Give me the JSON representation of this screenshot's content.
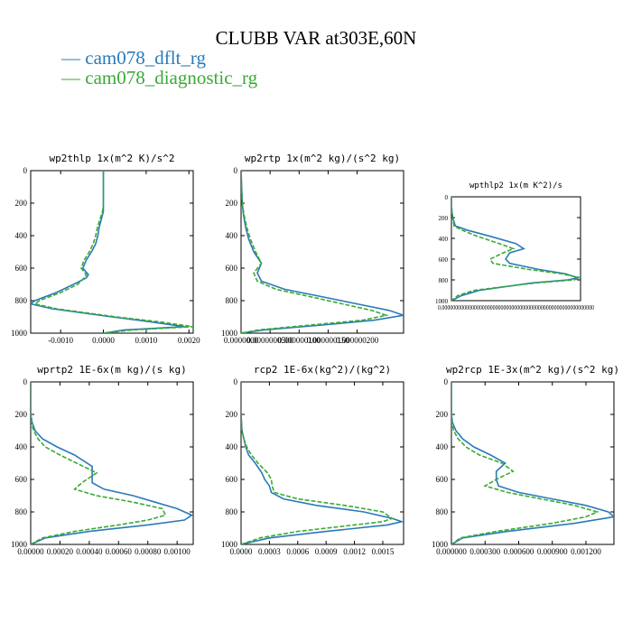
{
  "page": {
    "title": "CLUBB VAR at303E,60N",
    "legend": [
      {
        "label": "cam078_dflt_rg",
        "color": "#2a7ab8",
        "dash": false
      },
      {
        "label": "cam078_diagnostic_rg",
        "color": "#3aaa35",
        "dash": true
      }
    ]
  },
  "chart_data": [
    {
      "type": "line",
      "title": "wp2thlp  1x(m^2 K)/s^2",
      "xlim": [
        -0.0017,
        0.0021
      ],
      "xticks": [
        -0.001,
        0,
        0.001,
        0.002
      ],
      "xtick_labels": [
        "-0.0010",
        "0.0000",
        "0.0010",
        "0.0020"
      ],
      "ylim": [
        1000,
        0
      ],
      "yticks": [
        0,
        200,
        400,
        600,
        800,
        1000
      ],
      "ytick_labels": [
        "0",
        "200",
        "400",
        "600",
        "800",
        "1000"
      ],
      "series": [
        {
          "name": "cam078_dflt_rg",
          "y": [
            0,
            100,
            200,
            250,
            300,
            350,
            400,
            450,
            500,
            550,
            600,
            640,
            660,
            700,
            750,
            800,
            820,
            850,
            900,
            930,
            960,
            980,
            1000
          ],
          "x": [
            0,
            0,
            0,
            0,
            -5e-05,
            -0.0001,
            -0.00013,
            -0.00018,
            -0.00028,
            -0.0004,
            -0.00048,
            -0.00035,
            -0.0004,
            -0.0007,
            -0.0011,
            -0.0016,
            -0.0017,
            -0.0012,
            0.0002,
            0.0011,
            0.0019,
            0.0005,
            0
          ]
        },
        {
          "name": "cam078_diagnostic_rg",
          "y": [
            0,
            100,
            200,
            250,
            300,
            350,
            400,
            450,
            500,
            550,
            600,
            640,
            660,
            700,
            750,
            800,
            820,
            850,
            900,
            930,
            960,
            980,
            1000
          ],
          "x": [
            0,
            0,
            0,
            -2e-05,
            -8e-05,
            -0.00014,
            -0.00018,
            -0.00024,
            -0.00033,
            -0.00045,
            -0.00052,
            -0.0004,
            -0.00045,
            -0.0006,
            -0.001,
            -0.0015,
            -0.0016,
            -0.0011,
            0.0003,
            0.0013,
            0.0021,
            0.0007,
            0
          ]
        }
      ]
    },
    {
      "type": "line",
      "title": "wp2rtp  1x(m^2 kg)/(s^2 kg)",
      "xlim": [
        0,
        2.8e-07
      ],
      "xticks": [
        0,
        5e-08,
        1e-07,
        1.5e-07,
        2e-07
      ],
      "xtick_labels": [
        "0.0000000",
        "0.0000000500",
        "0.000000100",
        "0.000000150",
        "0.000000200"
      ],
      "ylim": [
        1000,
        0
      ],
      "yticks": [
        0,
        200,
        400,
        600,
        800,
        1000
      ],
      "ytick_labels": [
        "0",
        "200",
        "400",
        "600",
        "800",
        "1000"
      ],
      "series": [
        {
          "name": "cam078_dflt_rg",
          "y": [
            0,
            200,
            270,
            350,
            420,
            500,
            570,
            630,
            680,
            730,
            780,
            820,
            860,
            890,
            920,
            950,
            980,
            1000
          ],
          "x": [
            0,
            2e-09,
            4e-09,
            8e-09,
            1.3e-08,
            2.2e-08,
            3.5e-08,
            2.8e-08,
            3.5e-08,
            7.5e-08,
            1.45e-07,
            2e-07,
            2.55e-07,
            2.8e-07,
            2.3e-07,
            1.4e-07,
            4e-08,
            0
          ]
        },
        {
          "name": "cam078_diagnostic_rg",
          "y": [
            0,
            200,
            270,
            350,
            420,
            500,
            570,
            630,
            680,
            730,
            780,
            820,
            860,
            890,
            920,
            950,
            980,
            1000
          ],
          "x": [
            0,
            2e-09,
            5e-09,
            1e-08,
            1.6e-08,
            2.5e-08,
            3.5e-08,
            2.2e-08,
            2.8e-08,
            6e-08,
            1.25e-07,
            1.75e-07,
            2.25e-07,
            2.5e-07,
            2.1e-07,
            1.2e-07,
            3e-08,
            0
          ]
        }
      ]
    },
    {
      "type": "line",
      "title": "wpthlp2  1x(m K^2)/s",
      "xlim": [
        0,
        1
      ],
      "xticks": [],
      "xtick_labels": [],
      "xaxis_label_text": "0.000000000000000000000000000000000000000000000000000000000",
      "ylim": [
        1000,
        0
      ],
      "yticks": [
        0,
        200,
        400,
        600,
        800,
        1000
      ],
      "ytick_labels": [
        "0",
        "200",
        "400",
        "600",
        "800",
        "1000"
      ],
      "series": [
        {
          "name": "cam078_dflt_rg",
          "y": [
            0,
            100,
            200,
            280,
            320,
            380,
            450,
            500,
            540,
            600,
            640,
            700,
            740,
            780,
            800,
            830,
            900,
            950,
            1000
          ],
          "x": [
            0,
            0,
            0.01,
            0.03,
            0.12,
            0.3,
            0.5,
            0.56,
            0.45,
            0.42,
            0.45,
            0.68,
            0.88,
            0.98,
            0.9,
            0.62,
            0.22,
            0.08,
            0
          ]
        },
        {
          "name": "cam078_diagnostic_rg",
          "y": [
            0,
            100,
            200,
            280,
            320,
            380,
            450,
            500,
            540,
            600,
            640,
            700,
            740,
            780,
            800,
            830,
            900,
            950,
            1000
          ],
          "x": [
            0,
            0,
            0.01,
            0.02,
            0.08,
            0.2,
            0.37,
            0.48,
            0.4,
            0.3,
            0.32,
            0.6,
            0.85,
            1.0,
            0.95,
            0.65,
            0.18,
            0.05,
            0
          ]
        }
      ]
    },
    {
      "type": "line",
      "title": "wprtp2  1E-6x(m kg)/(s kg)",
      "xlim": [
        0,
        0.00111
      ],
      "xticks": [
        0,
        0.0002,
        0.0004,
        0.0006,
        0.0008,
        0.001
      ],
      "xtick_labels": [
        "0.00000",
        "0.00020",
        "0.00040",
        "0.00060",
        "0.00080",
        "0.00100"
      ],
      "ylim": [
        1000,
        0
      ],
      "yticks": [
        0,
        200,
        400,
        600,
        800,
        1000
      ],
      "ytick_labels": [
        "0",
        "200",
        "400",
        "600",
        "800",
        "1000"
      ],
      "series": [
        {
          "name": "cam078_dflt_rg",
          "y": [
            0,
            200,
            250,
            300,
            350,
            400,
            450,
            520,
            560,
            620,
            660,
            700,
            740,
            780,
            820,
            850,
            880,
            920,
            960,
            1000
          ],
          "x": [
            0,
            0,
            1e-05,
            3e-05,
            8e-05,
            0.00018,
            0.0003,
            0.00042,
            0.00042,
            0.00042,
            0.0005,
            0.0007,
            0.00085,
            0.001,
            0.0011,
            0.00105,
            0.0008,
            0.0004,
            0.0001,
            0
          ]
        },
        {
          "name": "cam078_diagnostic_rg",
          "y": [
            0,
            200,
            250,
            300,
            350,
            400,
            450,
            520,
            560,
            620,
            660,
            700,
            740,
            780,
            820,
            850,
            880,
            920,
            960,
            1000
          ],
          "x": [
            0,
            0,
            5e-06,
            2e-05,
            5e-05,
            0.0001,
            0.0002,
            0.00036,
            0.00045,
            0.00035,
            0.0003,
            0.00045,
            0.0007,
            0.0009,
            0.00092,
            0.0008,
            0.0006,
            0.0003,
            8e-05,
            0
          ]
        }
      ]
    },
    {
      "type": "line",
      "title": "rcp2  1E-6x(kg^2)/(kg^2)",
      "xlim": [
        0,
        0.00172
      ],
      "xticks": [
        0,
        0.0003,
        0.0006,
        0.0009,
        0.0012,
        0.0015
      ],
      "xtick_labels": [
        "0.0000",
        "0.0003",
        "0.0006",
        "0.0009",
        "0.0012",
        "0.0015"
      ],
      "ylim": [
        1000,
        0
      ],
      "yticks": [
        0,
        200,
        400,
        600,
        800,
        1000
      ],
      "ytick_labels": [
        "0",
        "200",
        "400",
        "600",
        "800",
        "1000"
      ],
      "series": [
        {
          "name": "cam078_dflt_rg",
          "y": [
            0,
            200,
            300,
            350,
            400,
            450,
            500,
            560,
            600,
            640,
            680,
            720,
            760,
            800,
            840,
            860,
            880,
            920,
            960,
            1000
          ],
          "x": [
            0,
            0,
            1e-05,
            3e-05,
            5e-05,
            8e-05,
            0.00015,
            0.00022,
            0.00025,
            0.0003,
            0.00032,
            0.00045,
            0.0008,
            0.0013,
            0.0016,
            0.0017,
            0.00155,
            0.0009,
            0.0003,
            0
          ]
        },
        {
          "name": "cam078_diagnostic_rg",
          "y": [
            0,
            200,
            300,
            350,
            400,
            450,
            500,
            560,
            600,
            640,
            680,
            720,
            760,
            800,
            840,
            860,
            880,
            920,
            960,
            1000
          ],
          "x": [
            0,
            0,
            1e-05,
            3e-05,
            6e-05,
            0.00011,
            0.00018,
            0.00028,
            0.00032,
            0.00033,
            0.00035,
            0.0006,
            0.0011,
            0.0015,
            0.0016,
            0.0015,
            0.0012,
            0.0006,
            0.0002,
            0
          ]
        }
      ]
    },
    {
      "type": "line",
      "title": "wp2rcp  1E-3x(m^2 kg)/(s^2 kg)",
      "xlim": [
        0,
        0.00145
      ],
      "xticks": [
        0,
        0.0003,
        0.0006,
        0.0009,
        0.0012
      ],
      "xtick_labels": [
        "0.000000",
        "0.000300",
        "0.000600",
        "0.000900",
        "0.001200"
      ],
      "ylim": [
        1000,
        0
      ],
      "yticks": [
        0,
        200,
        400,
        600,
        800,
        1000
      ],
      "ytick_labels": [
        "0",
        "200",
        "400",
        "600",
        "800",
        "1000"
      ],
      "series": [
        {
          "name": "cam078_dflt_rg",
          "y": [
            0,
            200,
            250,
            300,
            350,
            400,
            450,
            500,
            550,
            600,
            640,
            680,
            720,
            760,
            800,
            830,
            870,
            920,
            960,
            1000
          ],
          "x": [
            0,
            0,
            1e-05,
            4e-05,
            0.0001,
            0.0002,
            0.00035,
            0.00048,
            0.0004,
            0.0004,
            0.00042,
            0.0006,
            0.0009,
            0.0012,
            0.0014,
            0.00145,
            0.0011,
            0.0005,
            0.0001,
            0
          ]
        },
        {
          "name": "cam078_diagnostic_rg",
          "y": [
            0,
            200,
            250,
            300,
            350,
            400,
            450,
            500,
            550,
            600,
            640,
            680,
            720,
            760,
            800,
            830,
            870,
            920,
            960,
            1000
          ],
          "x": [
            0,
            0,
            5e-06,
            2e-05,
            6e-05,
            0.00013,
            0.00025,
            0.00045,
            0.00055,
            0.0004,
            0.0003,
            0.0005,
            0.0008,
            0.0011,
            0.0013,
            0.0012,
            0.0009,
            0.0004,
            8e-05,
            0
          ]
        }
      ]
    }
  ]
}
